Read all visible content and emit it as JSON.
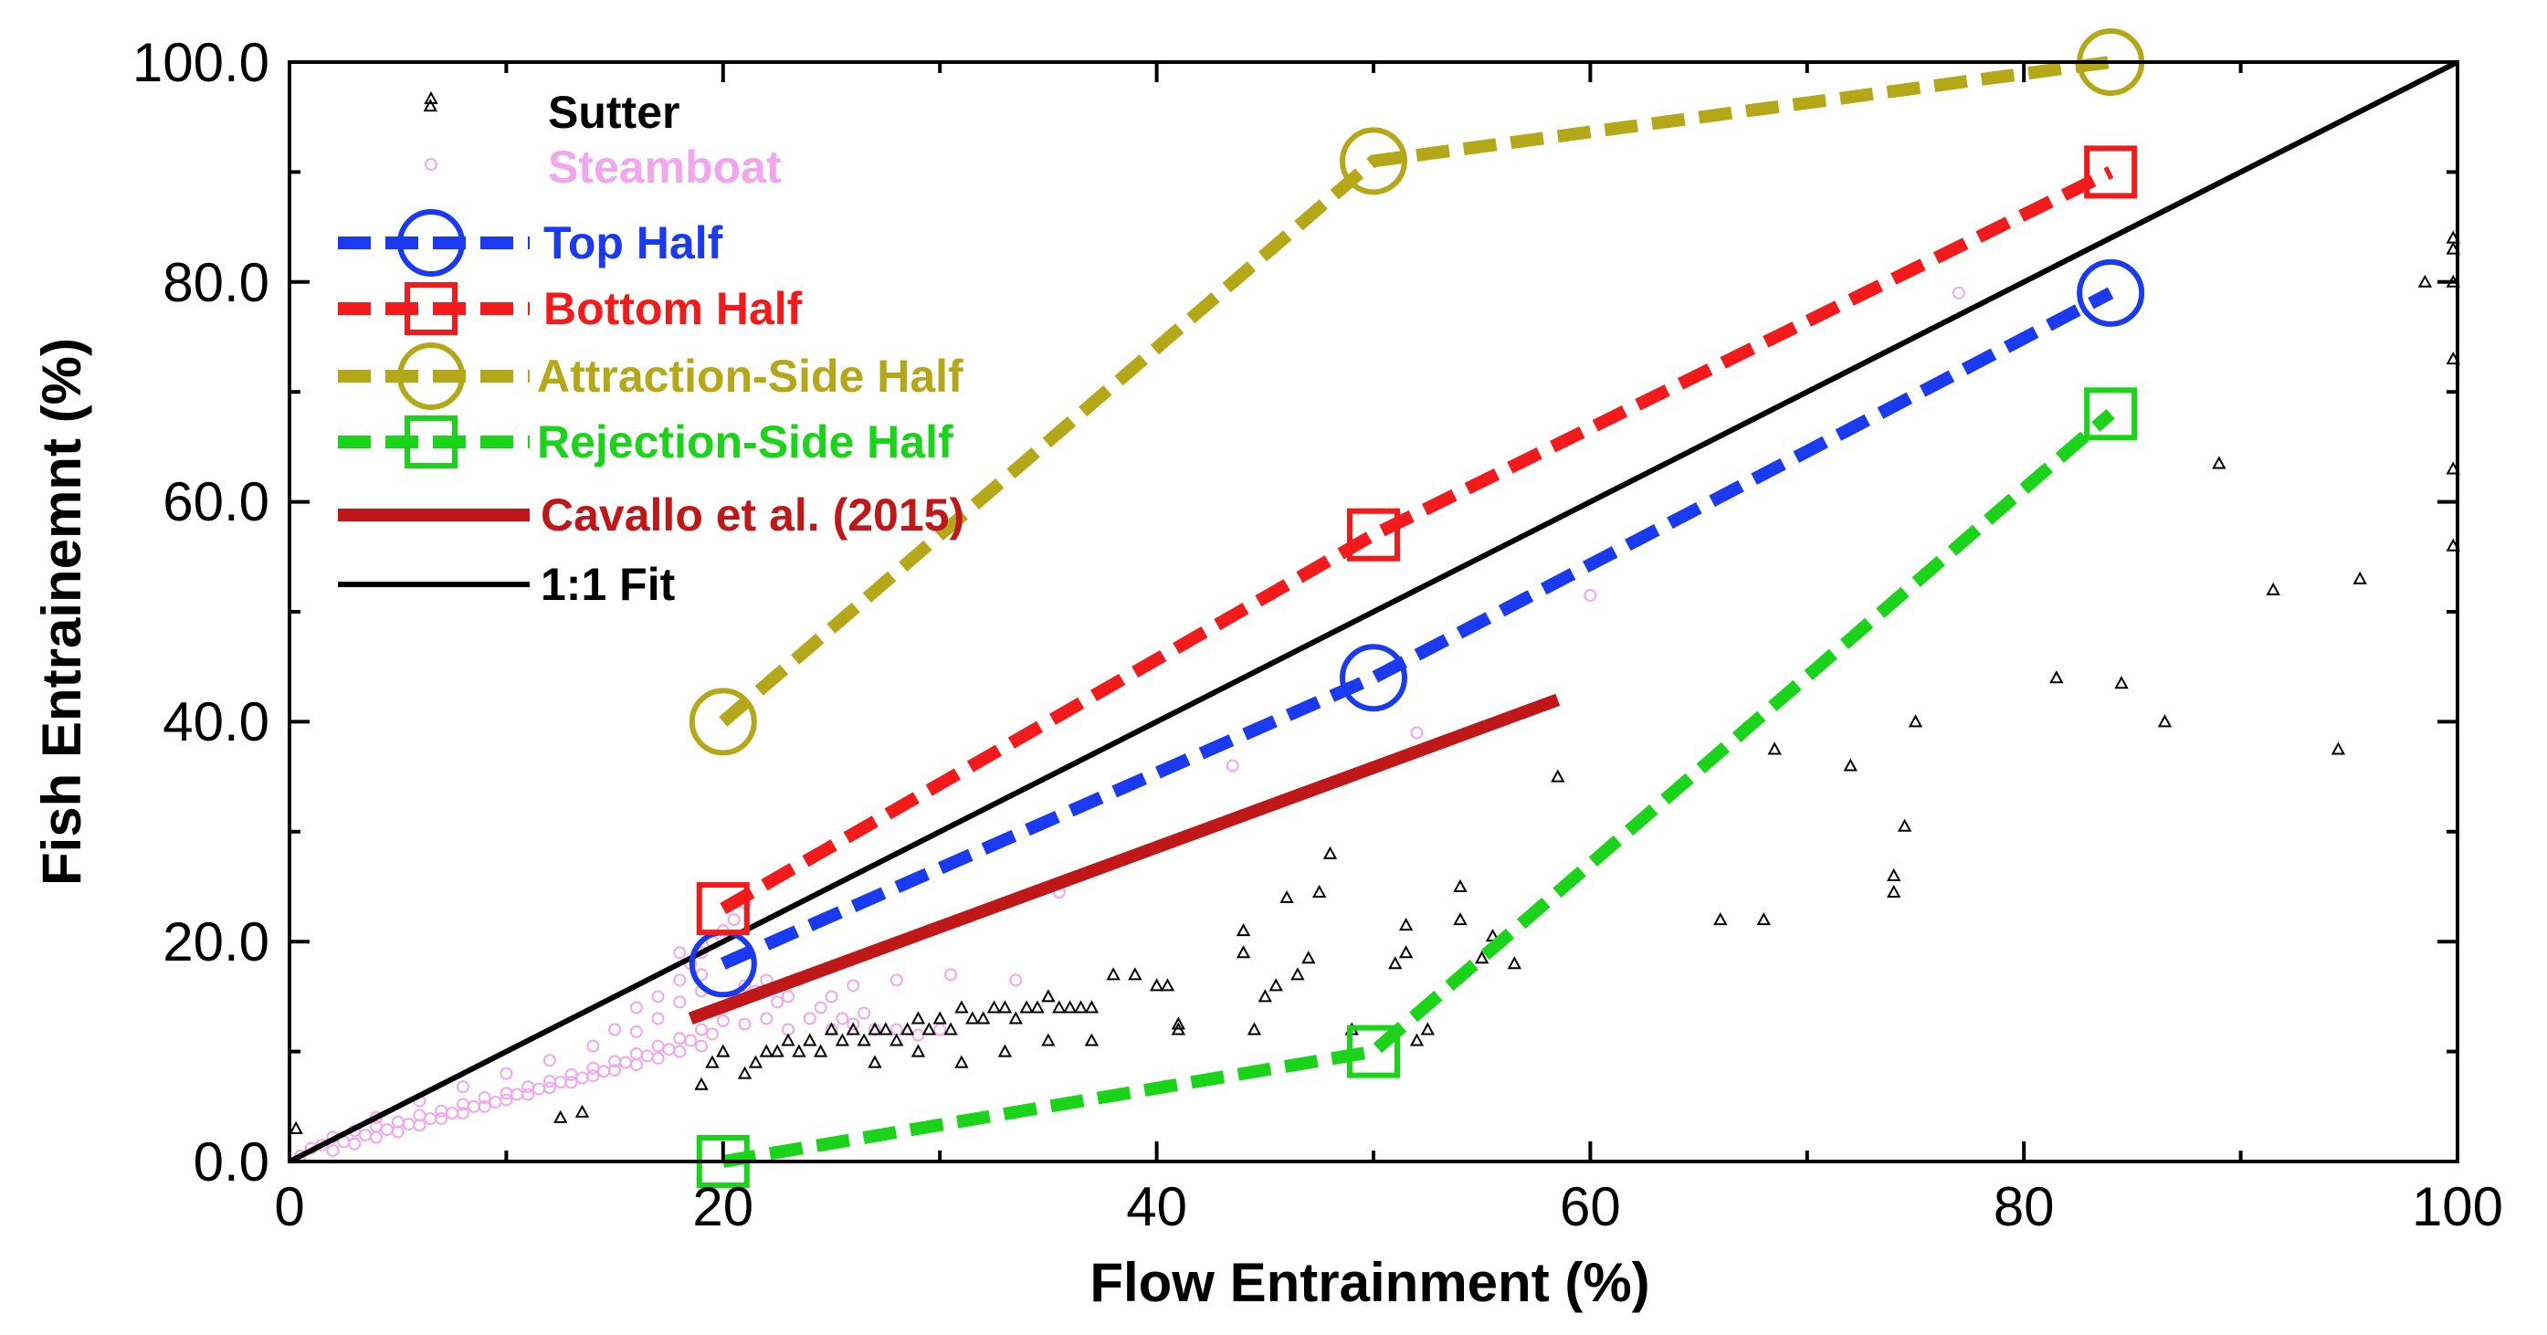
{
  "chart_data": {
    "type": "scatter",
    "title": "",
    "xlabel": "Flow Entrainment (%)",
    "ylabel": "Fish Entrainemnt (%)",
    "xlim": [
      0,
      100
    ],
    "ylim": [
      0,
      100
    ],
    "x_ticks": [
      "0",
      "20",
      "40",
      "60",
      "80",
      "100"
    ],
    "y_ticks": [
      "0.0",
      "20.0",
      "40.0",
      "60.0",
      "80.0",
      "100.0"
    ],
    "legend_position": "top-left",
    "colors": {
      "sutter": "#000000",
      "steamboat": "#f2a6ee",
      "top_half": "#1a3af2",
      "bottom_half": "#f21a1a",
      "attraction": "#b5a818",
      "rejection": "#1ad41a",
      "cavallo": "#c01818",
      "fit": "#000000"
    },
    "legend": {
      "sutter": "Sutter",
      "steamboat": "Steamboat",
      "top_half": "Top Half",
      "bottom_half": "Bottom Half",
      "attraction": "Attraction-Side Half",
      "rejection": "Rejection-Side Half",
      "cavallo": "Cavallo et al. (2015)",
      "fit": "1:1 Fit"
    },
    "series": [
      {
        "name": "Top Half",
        "key": "top_half",
        "marker": "circle",
        "x": [
          20,
          50,
          84
        ],
        "y": [
          18,
          44,
          79
        ]
      },
      {
        "name": "Bottom Half",
        "key": "bottom_half",
        "marker": "square",
        "x": [
          20,
          50,
          84
        ],
        "y": [
          23,
          57,
          90
        ]
      },
      {
        "name": "Attraction-Side Half",
        "key": "attraction",
        "marker": "circle",
        "x": [
          20,
          50,
          84
        ],
        "y": [
          40,
          91,
          100
        ]
      },
      {
        "name": "Rejection-Side Half",
        "key": "rejection",
        "marker": "square",
        "x": [
          20,
          50,
          84
        ],
        "y": [
          0,
          10,
          68
        ]
      }
    ],
    "cavallo": {
      "x": [
        18.5,
        58.5
      ],
      "y": [
        13,
        42
      ]
    },
    "fit": {
      "x": [
        0,
        100
      ],
      "y": [
        0,
        100
      ]
    },
    "sutter": [
      [
        0.3,
        3
      ],
      [
        6.5,
        96
      ],
      [
        12.5,
        4
      ],
      [
        13.5,
        4.5
      ],
      [
        19,
        7
      ],
      [
        19.5,
        9
      ],
      [
        20,
        10
      ],
      [
        21,
        8
      ],
      [
        21.5,
        9
      ],
      [
        22,
        10
      ],
      [
        22.5,
        10
      ],
      [
        23,
        11
      ],
      [
        23.5,
        10
      ],
      [
        24,
        11
      ],
      [
        24.5,
        10
      ],
      [
        25,
        12
      ],
      [
        25.5,
        11
      ],
      [
        26,
        12
      ],
      [
        26.5,
        11
      ],
      [
        27,
        12
      ],
      [
        27.5,
        12
      ],
      [
        28,
        11
      ],
      [
        28.5,
        12
      ],
      [
        29,
        13
      ],
      [
        29.5,
        12
      ],
      [
        30,
        13
      ],
      [
        30.5,
        12
      ],
      [
        31,
        14
      ],
      [
        31.5,
        13
      ],
      [
        32,
        13
      ],
      [
        32.5,
        14
      ],
      [
        33,
        14
      ],
      [
        33.5,
        13
      ],
      [
        34,
        14
      ],
      [
        34.5,
        14
      ],
      [
        35,
        15
      ],
      [
        35.5,
        14
      ],
      [
        36,
        14
      ],
      [
        36.5,
        14
      ],
      [
        37,
        14
      ],
      [
        38,
        17
      ],
      [
        39,
        17
      ],
      [
        40,
        16
      ],
      [
        40.5,
        16
      ],
      [
        41,
        12
      ],
      [
        27,
        9
      ],
      [
        29,
        10
      ],
      [
        31,
        9
      ],
      [
        33,
        10
      ],
      [
        35,
        11
      ],
      [
        37,
        11
      ],
      [
        41,
        12.5
      ],
      [
        44,
        21
      ],
      [
        44,
        19
      ],
      [
        44.5,
        12
      ],
      [
        45,
        15
      ],
      [
        45.5,
        16
      ],
      [
        46,
        24
      ],
      [
        46.5,
        17
      ],
      [
        47,
        18.5
      ],
      [
        47.5,
        24.5
      ],
      [
        48,
        28
      ],
      [
        49,
        12
      ],
      [
        51,
        18
      ],
      [
        51.5,
        19
      ],
      [
        51.5,
        21.5
      ],
      [
        52,
        11
      ],
      [
        52.5,
        12
      ],
      [
        54,
        25
      ],
      [
        54,
        22
      ],
      [
        55,
        18.5
      ],
      [
        55.5,
        20.5
      ],
      [
        56.5,
        18
      ],
      [
        58.5,
        35
      ],
      [
        66,
        22
      ],
      [
        68,
        22
      ],
      [
        68.5,
        37.5
      ],
      [
        72,
        36
      ],
      [
        74,
        26
      ],
      [
        74,
        24.5
      ],
      [
        74.5,
        30.5
      ],
      [
        75,
        40
      ],
      [
        81.5,
        44
      ],
      [
        84.5,
        43.5
      ],
      [
        86.5,
        40
      ],
      [
        89,
        63.5
      ],
      [
        91.5,
        52
      ],
      [
        94.5,
        37.5
      ],
      [
        95.5,
        53
      ],
      [
        98.5,
        80
      ],
      [
        99.8,
        84
      ],
      [
        99.8,
        83
      ],
      [
        99.8,
        80
      ],
      [
        99.8,
        73
      ],
      [
        99.8,
        63
      ],
      [
        99.8,
        56
      ]
    ],
    "steamboat": [
      [
        0.5,
        0.5
      ],
      [
        1,
        1.2
      ],
      [
        1.5,
        1.5
      ],
      [
        2,
        2.2
      ],
      [
        2.5,
        1.8
      ],
      [
        3,
        2.8
      ],
      [
        3.5,
        2.4
      ],
      [
        4,
        3.2
      ],
      [
        4.5,
        2.9
      ],
      [
        5,
        3.6
      ],
      [
        5.5,
        3.4
      ],
      [
        6,
        4.2
      ],
      [
        6.5,
        3.9
      ],
      [
        7,
        4.6
      ],
      [
        7.5,
        4.4
      ],
      [
        8,
        5.2
      ],
      [
        8.5,
        5
      ],
      [
        9,
        5.8
      ],
      [
        9.5,
        5.4
      ],
      [
        10,
        6.2
      ],
      [
        10.5,
        6.1
      ],
      [
        11,
        6.8
      ],
      [
        11.5,
        6.6
      ],
      [
        12,
        7.3
      ],
      [
        12.5,
        7.2
      ],
      [
        13,
        7.9
      ],
      [
        13.5,
        7.6
      ],
      [
        14,
        8.5
      ],
      [
        14.5,
        8.2
      ],
      [
        15,
        9.1
      ],
      [
        15.5,
        9
      ],
      [
        16,
        9.8
      ],
      [
        16.5,
        9.6
      ],
      [
        17,
        10.5
      ],
      [
        17.5,
        10.2
      ],
      [
        18,
        11.2
      ],
      [
        18.5,
        11
      ],
      [
        19,
        12
      ],
      [
        19.5,
        11.6
      ],
      [
        20,
        12.8
      ],
      [
        2,
        1
      ],
      [
        3,
        1.6
      ],
      [
        4,
        2.2
      ],
      [
        5,
        2.7
      ],
      [
        6,
        3.3
      ],
      [
        7,
        3.9
      ],
      [
        8,
        4.4
      ],
      [
        9,
        5
      ],
      [
        10,
        5.6
      ],
      [
        11,
        6.1
      ],
      [
        12,
        6.7
      ],
      [
        13,
        7.2
      ],
      [
        14,
        7.8
      ],
      [
        15,
        8.3
      ],
      [
        16,
        8.8
      ],
      [
        17,
        9.4
      ],
      [
        18,
        10
      ],
      [
        19,
        10.5
      ],
      [
        4,
        4
      ],
      [
        6,
        5.5
      ],
      [
        8,
        6.8
      ],
      [
        10,
        8
      ],
      [
        12,
        9.2
      ],
      [
        14,
        10.5
      ],
      [
        16,
        11.8
      ],
      [
        17,
        13
      ],
      [
        18,
        14.5
      ],
      [
        19,
        15.5
      ],
      [
        15,
        12
      ],
      [
        16,
        14
      ],
      [
        17,
        15
      ],
      [
        18,
        16.5
      ],
      [
        18.5,
        18
      ],
      [
        19,
        19
      ],
      [
        19.5,
        20
      ],
      [
        20,
        21
      ],
      [
        20.5,
        22
      ],
      [
        21,
        23.5
      ],
      [
        19,
        17
      ],
      [
        18,
        19
      ],
      [
        20,
        14
      ],
      [
        20.5,
        15
      ],
      [
        21,
        16
      ],
      [
        21.5,
        15.5
      ],
      [
        22,
        16.5
      ],
      [
        22.5,
        14.5
      ],
      [
        23,
        15
      ],
      [
        23.5,
        16.5
      ],
      [
        24,
        17
      ],
      [
        24.5,
        14
      ],
      [
        25,
        15
      ],
      [
        25.5,
        13
      ],
      [
        26,
        16
      ],
      [
        26.5,
        13.5
      ],
      [
        21,
        12.5
      ],
      [
        22,
        13
      ],
      [
        23,
        12
      ],
      [
        24,
        13
      ],
      [
        25,
        12
      ],
      [
        26,
        12.5
      ],
      [
        27,
        12
      ],
      [
        28,
        12
      ],
      [
        29,
        11.5
      ],
      [
        30,
        12
      ],
      [
        28,
        16.5
      ],
      [
        30.5,
        17
      ],
      [
        33.5,
        16.5
      ],
      [
        35.5,
        24.5
      ],
      [
        43.5,
        36
      ],
      [
        52,
        39
      ],
      [
        60,
        51.5
      ],
      [
        77,
        79
      ]
    ]
  }
}
